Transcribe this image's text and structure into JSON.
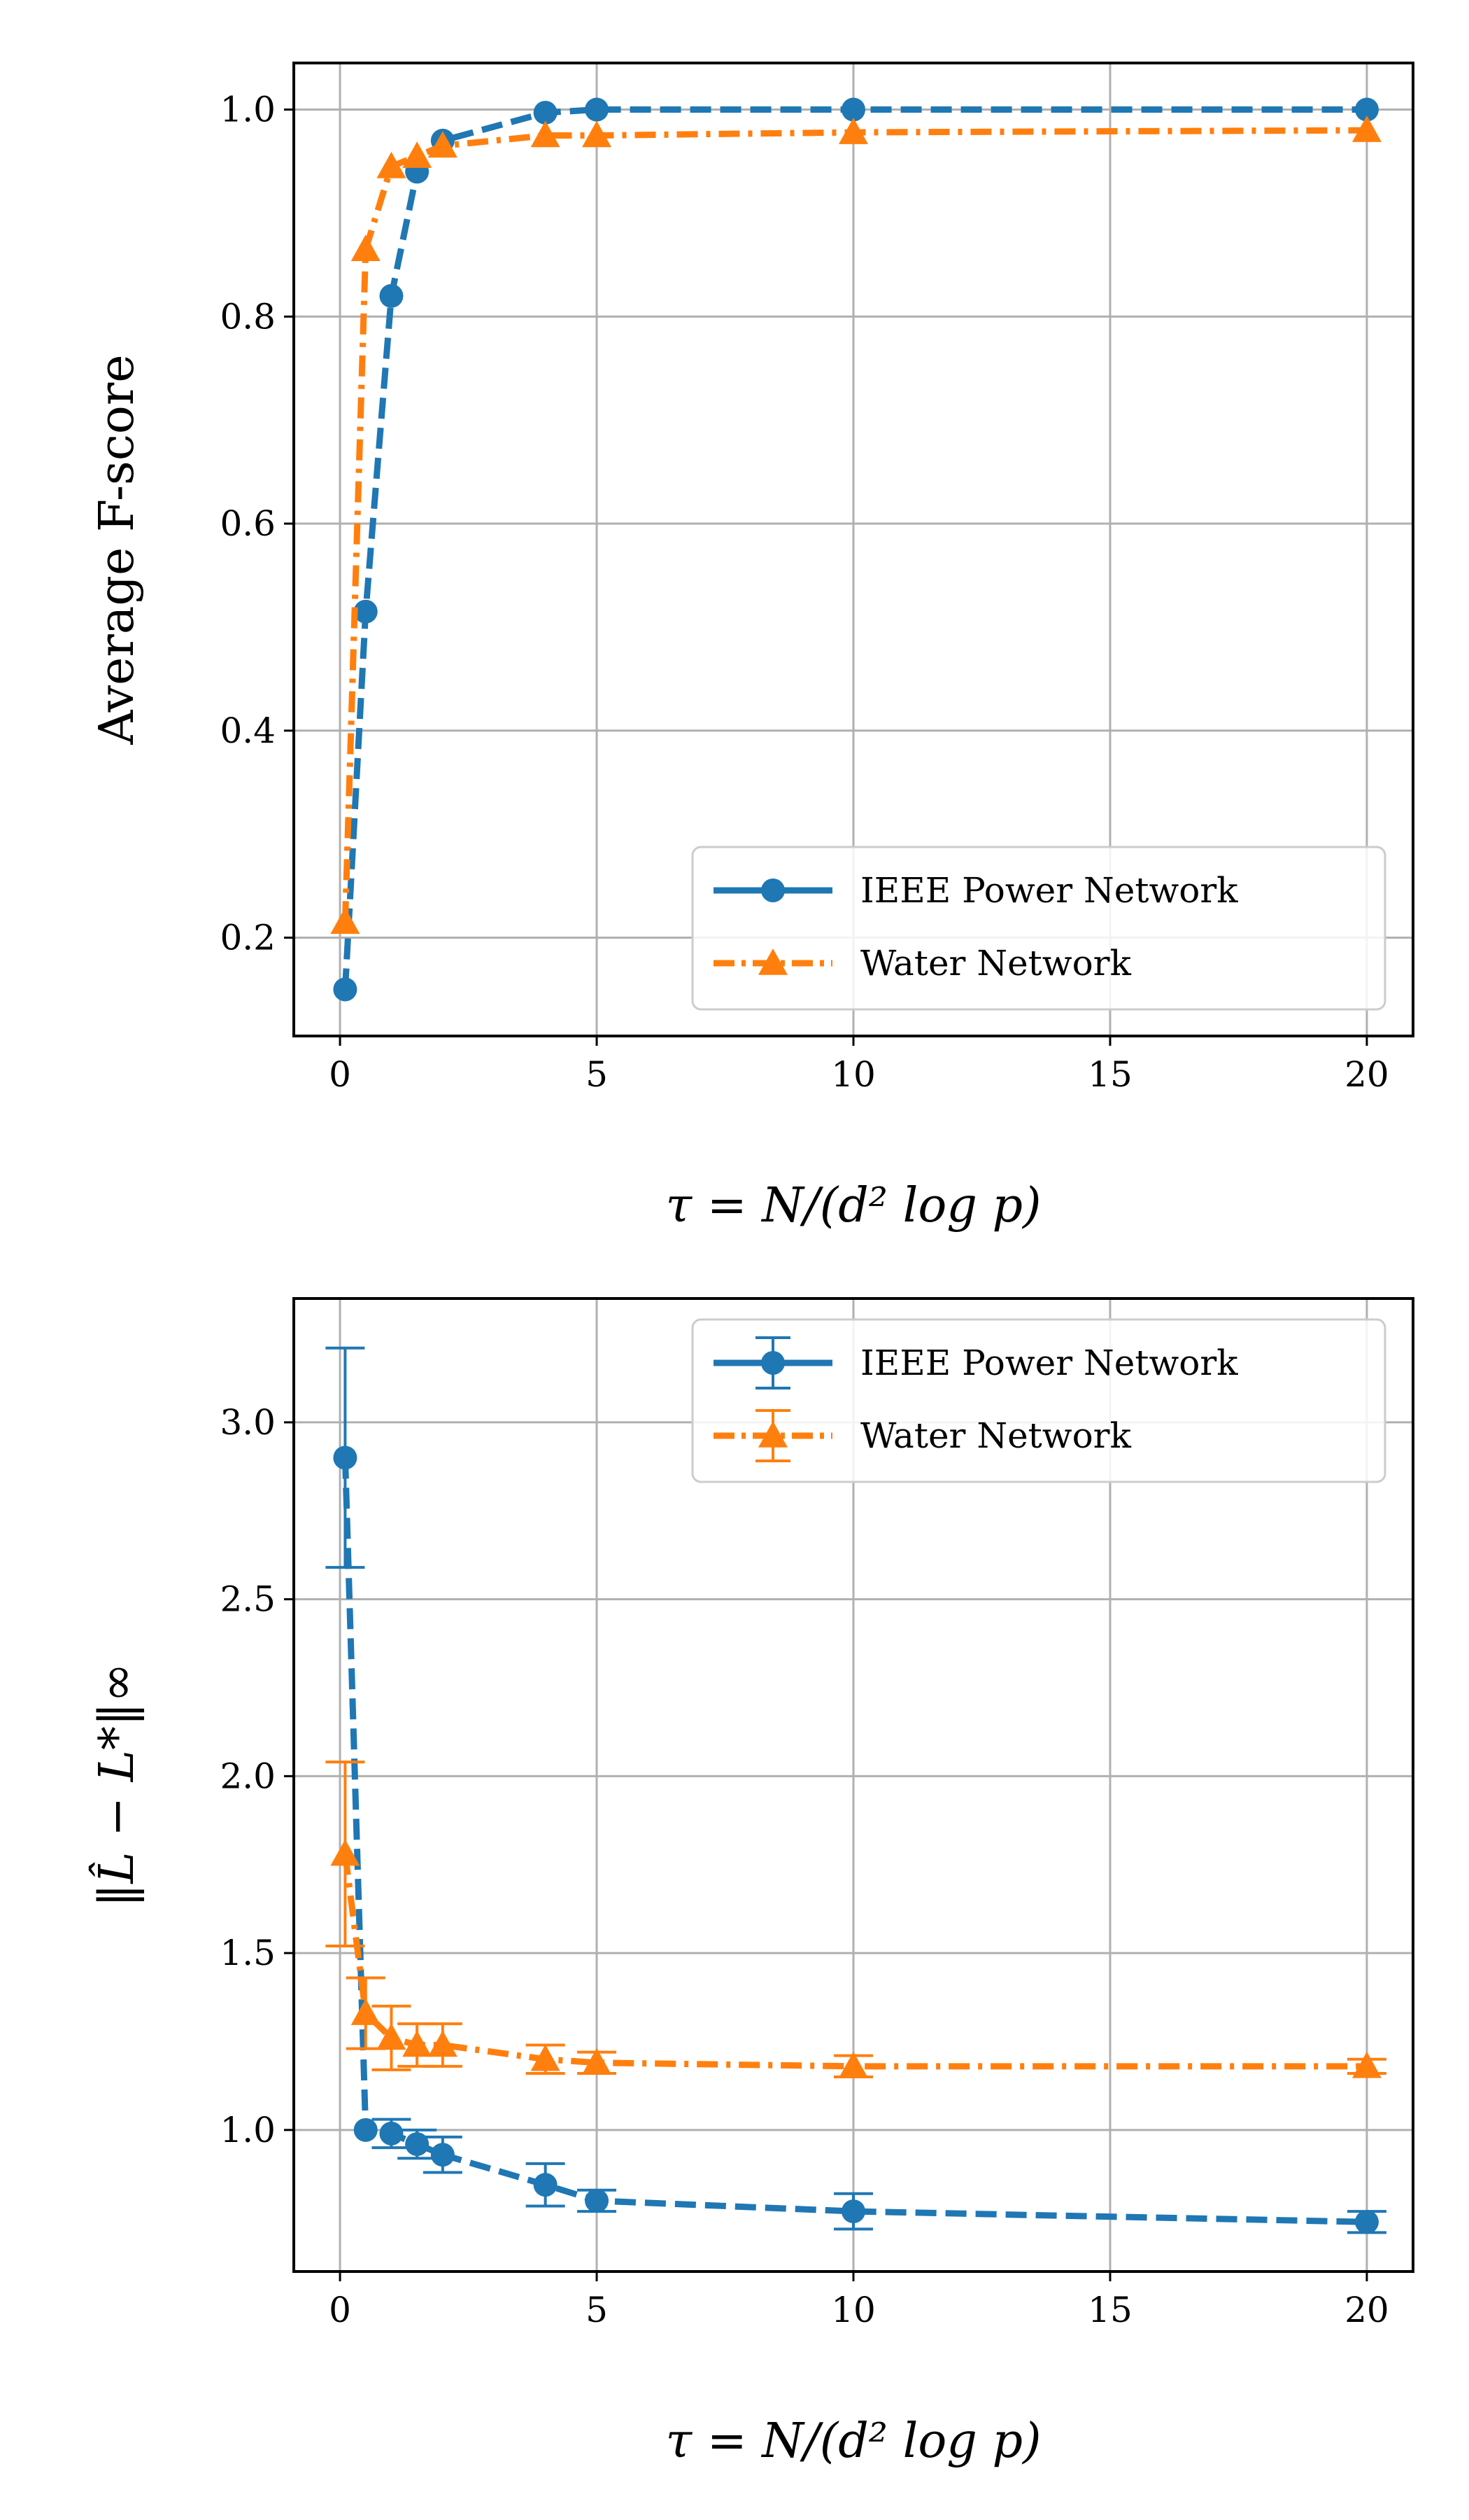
{
  "chart_data": [
    {
      "type": "line",
      "title": "",
      "xlabel": "τ = N/(d² log p)",
      "ylabel": "Average F-score",
      "xlim": [
        -0.9,
        20.9
      ],
      "ylim": [
        0.105,
        1.045
      ],
      "xticks": [
        0,
        5,
        10,
        15,
        20
      ],
      "xtick_labels": [
        "0",
        "5",
        "10",
        "15",
        "20"
      ],
      "yticks": [
        0.2,
        0.4,
        0.6,
        0.8,
        1.0
      ],
      "ytick_labels": [
        "0.2",
        "0.4",
        "0.6",
        "0.8",
        "1.0"
      ],
      "grid": true,
      "legend_position": "lower-right",
      "series": [
        {
          "name": "IEEE Power Network",
          "color": "#1f77b4",
          "linestyle": "dashed",
          "marker": "circle",
          "x": [
            0.1,
            0.5,
            1,
            1.5,
            2,
            4,
            5,
            10,
            20
          ],
          "y": [
            0.15,
            0.515,
            0.82,
            0.94,
            0.97,
            0.997,
            1.0,
            1.0,
            1.0
          ]
        },
        {
          "name": "Water Network",
          "color": "#ff7f0e",
          "linestyle": "dashdot",
          "marker": "triangle",
          "x": [
            0.1,
            0.5,
            1,
            1.5,
            2,
            4,
            5,
            10,
            20
          ],
          "y": [
            0.215,
            0.865,
            0.945,
            0.955,
            0.965,
            0.975,
            0.975,
            0.978,
            0.98
          ]
        }
      ]
    },
    {
      "type": "line",
      "title": "",
      "xlabel": "τ = N/(d² log p)",
      "ylabel": "‖L̂ − L*‖∞",
      "xlim": [
        -0.9,
        20.9
      ],
      "ylim": [
        0.6,
        3.35
      ],
      "xticks": [
        0,
        5,
        10,
        15,
        20
      ],
      "xtick_labels": [
        "0",
        "5",
        "10",
        "15",
        "20"
      ],
      "yticks": [
        1.0,
        1.5,
        2.0,
        2.5,
        3.0
      ],
      "ytick_labels": [
        "1.0",
        "1.5",
        "2.0",
        "2.5",
        "3.0"
      ],
      "grid": true,
      "legend_position": "top-right",
      "series": [
        {
          "name": "IEEE Power Network",
          "color": "#1f77b4",
          "linestyle": "dashed",
          "marker": "circle",
          "x": [
            0.1,
            0.5,
            1,
            1.5,
            2,
            4,
            5,
            10,
            20
          ],
          "y": [
            2.9,
            1.0,
            0.99,
            0.96,
            0.93,
            0.845,
            0.8,
            0.77,
            0.74
          ],
          "yerr": [
            0.31,
            0.0,
            0.04,
            0.04,
            0.05,
            0.06,
            0.03,
            0.05,
            0.03
          ]
        },
        {
          "name": "Water Network",
          "color": "#ff7f0e",
          "linestyle": "dashdot",
          "marker": "triangle",
          "x": [
            0.1,
            0.5,
            1,
            1.5,
            2,
            4,
            5,
            10,
            20
          ],
          "y": [
            1.78,
            1.33,
            1.26,
            1.24,
            1.24,
            1.2,
            1.19,
            1.18,
            1.18
          ],
          "yerr": [
            0.26,
            0.1,
            0.09,
            0.06,
            0.06,
            0.04,
            0.03,
            0.03,
            0.02
          ]
        }
      ]
    }
  ]
}
